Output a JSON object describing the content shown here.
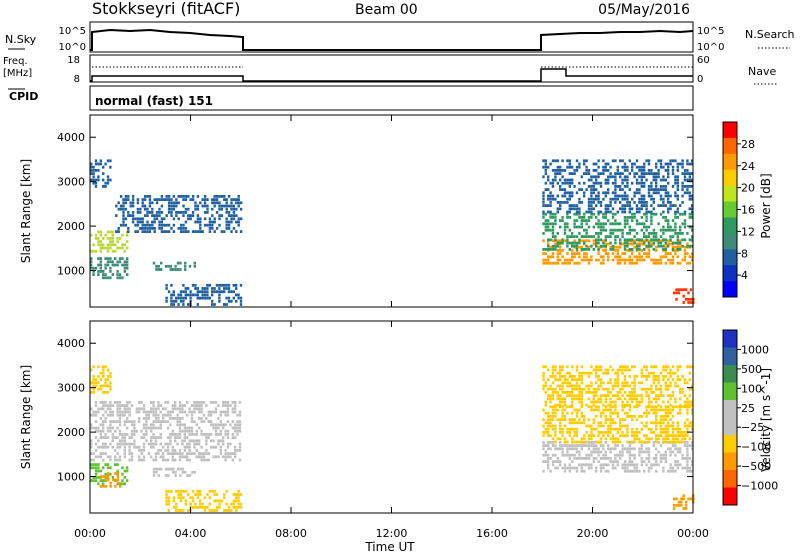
{
  "header": {
    "station": "Stokkseyri (fitACF)",
    "beam": "Beam 00",
    "date": "05/May/2016"
  },
  "strip": {
    "nsky_label": "N.Sky",
    "nsky_ticks": [
      "10^5",
      "10^0"
    ],
    "nsearch_label": "N.Search",
    "nsearch_ticks": [
      "10^5",
      "10^0"
    ],
    "freq_label_1": "Freq.",
    "freq_label_2": "[MHz]",
    "freq_ticks": [
      "18",
      "8"
    ],
    "nave_label": "Nave",
    "nave_ticks": [
      "60",
      "0"
    ],
    "cpid_label": "CPID",
    "cpid_value": "normal (fast) 151"
  },
  "xaxis": {
    "label": "Time UT",
    "ticks": [
      "00:00",
      "04:00",
      "08:00",
      "12:00",
      "16:00",
      "20:00",
      "00:00"
    ]
  },
  "chart_data": [
    {
      "type": "heatmap",
      "name": "power",
      "ylabel": "Slant Range [km]",
      "yticks": [
        "4000",
        "3000",
        "2000",
        "1000"
      ],
      "ylim": [
        180,
        4500
      ],
      "xlim_hours": [
        0,
        24
      ],
      "colorbar_label": "Power [dB]",
      "colorbar_ticks": [
        "28",
        "24",
        "20",
        "16",
        "12",
        "8",
        "4"
      ],
      "colorbar_colors": [
        "#ff0000",
        "#ff6600",
        "#ff9900",
        "#ffcc00",
        "#bfe61a",
        "#66cc33",
        "#2e9960",
        "#3c8c78",
        "#2060a0",
        "#1030c0",
        "#0000ff"
      ],
      "bands": [
        {
          "t0": 0.0,
          "t1": 1.5,
          "r0": 1400,
          "r1": 1900,
          "color": "#b8d832"
        },
        {
          "t0": 0.0,
          "t1": 1.5,
          "r0": 800,
          "r1": 1300,
          "color": "#3c8c78"
        },
        {
          "t0": 1.0,
          "t1": 6.0,
          "r0": 1900,
          "r1": 2700,
          "color": "#2060a0"
        },
        {
          "t0": 0.0,
          "t1": 0.8,
          "r0": 2900,
          "r1": 3500,
          "color": "#2060a0"
        },
        {
          "t0": 2.5,
          "t1": 4.2,
          "r0": 1000,
          "r1": 1200,
          "color": "#3c8c78"
        },
        {
          "t0": 3.0,
          "t1": 6.0,
          "r0": 200,
          "r1": 700,
          "color": "#2060a0"
        },
        {
          "t0": 18.0,
          "t1": 24.0,
          "r0": 1150,
          "r1": 1700,
          "color": "#ff9900"
        },
        {
          "t0": 18.0,
          "t1": 24.0,
          "r0": 1500,
          "r1": 2300,
          "color": "#2e9960"
        },
        {
          "t0": 18.0,
          "t1": 24.0,
          "r0": 2300,
          "r1": 3500,
          "color": "#2060a0"
        },
        {
          "t0": 23.2,
          "t1": 24.0,
          "r0": 300,
          "r1": 600,
          "color": "#ff3300"
        }
      ]
    },
    {
      "type": "heatmap",
      "name": "velocity",
      "ylabel": "Slant Range [km]",
      "yticks": [
        "4000",
        "3000",
        "2000",
        "1000"
      ],
      "ylim": [
        180,
        4500
      ],
      "xlim_hours": [
        0,
        24
      ],
      "colorbar_label": "Velocity [m s^-1]",
      "colorbar_ticks": [
        "1000",
        "500",
        "100",
        "25",
        "-25",
        "-100",
        "-500",
        "-1000"
      ],
      "colorbar_colors": [
        "#2030c0",
        "#3060a0",
        "#3c8c50",
        "#60c030",
        "#c0c0c0",
        "#c0c0c0",
        "#ffcc00",
        "#ff9900",
        "#ff6600",
        "#ff0000"
      ],
      "bands": [
        {
          "t0": 0.0,
          "t1": 6.0,
          "r0": 1400,
          "r1": 2700,
          "color": "#c0c0c0"
        },
        {
          "t0": 0.0,
          "t1": 1.5,
          "r0": 800,
          "r1": 1300,
          "color": "#60c030"
        },
        {
          "t0": 0.3,
          "t1": 1.2,
          "r0": 800,
          "r1": 1100,
          "color": "#ff9900"
        },
        {
          "t0": 2.5,
          "t1": 4.2,
          "r0": 1000,
          "r1": 1200,
          "color": "#c0c0c0"
        },
        {
          "t0": 0.0,
          "t1": 0.8,
          "r0": 2900,
          "r1": 3500,
          "color": "#ffcc00"
        },
        {
          "t0": 3.0,
          "t1": 6.0,
          "r0": 200,
          "r1": 700,
          "color": "#ffcc00"
        },
        {
          "t0": 18.0,
          "t1": 24.0,
          "r0": 1150,
          "r1": 1800,
          "color": "#c0c0c0"
        },
        {
          "t0": 18.0,
          "t1": 24.0,
          "r0": 1800,
          "r1": 2600,
          "color": "#ffcc00"
        },
        {
          "t0": 18.0,
          "t1": 24.0,
          "r0": 2600,
          "r1": 3500,
          "color": "#ffcc00"
        },
        {
          "t0": 23.2,
          "t1": 24.0,
          "r0": 300,
          "r1": 600,
          "color": "#ff9900"
        }
      ]
    }
  ]
}
